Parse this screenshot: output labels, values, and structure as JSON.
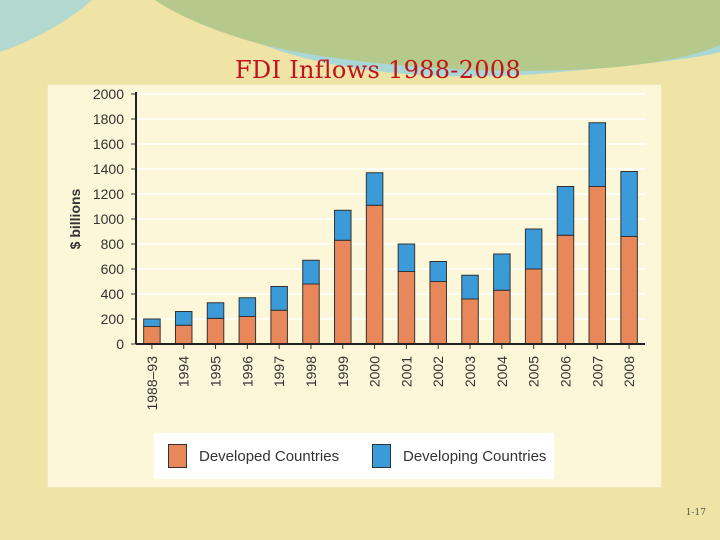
{
  "slide": {
    "title": "FDI Inflows 1988-2008",
    "page_number": "1-17"
  },
  "colors": {
    "background": "#efe3a6",
    "developed": "#e8875a",
    "developing": "#3b9bd8",
    "title": "#c0141c"
  },
  "chart_data": {
    "type": "bar",
    "stacked": true,
    "title": "FDI Inflows 1988-2008",
    "xlabel": "",
    "ylabel": "$ billions",
    "ylim": [
      0,
      2000
    ],
    "yticks": [
      0,
      200,
      400,
      600,
      800,
      1000,
      1200,
      1400,
      1600,
      1800,
      2000
    ],
    "grid": true,
    "legend_position": "bottom",
    "categories": [
      "1988–93",
      "1994",
      "1995",
      "1996",
      "1997",
      "1998",
      "1999",
      "2000",
      "2001",
      "2002",
      "2003",
      "2004",
      "2005",
      "2006",
      "2007",
      "2008"
    ],
    "series": [
      {
        "name": "Developed Countries",
        "color": "#e8875a",
        "values": [
          140,
          150,
          205,
          220,
          270,
          480,
          830,
          1110,
          580,
          500,
          360,
          430,
          600,
          870,
          1260,
          860
        ]
      },
      {
        "name": "Developing Countries",
        "color": "#3b9bd8",
        "values": [
          60,
          110,
          125,
          150,
          190,
          190,
          240,
          260,
          220,
          160,
          190,
          290,
          320,
          390,
          510,
          520
        ]
      }
    ]
  }
}
